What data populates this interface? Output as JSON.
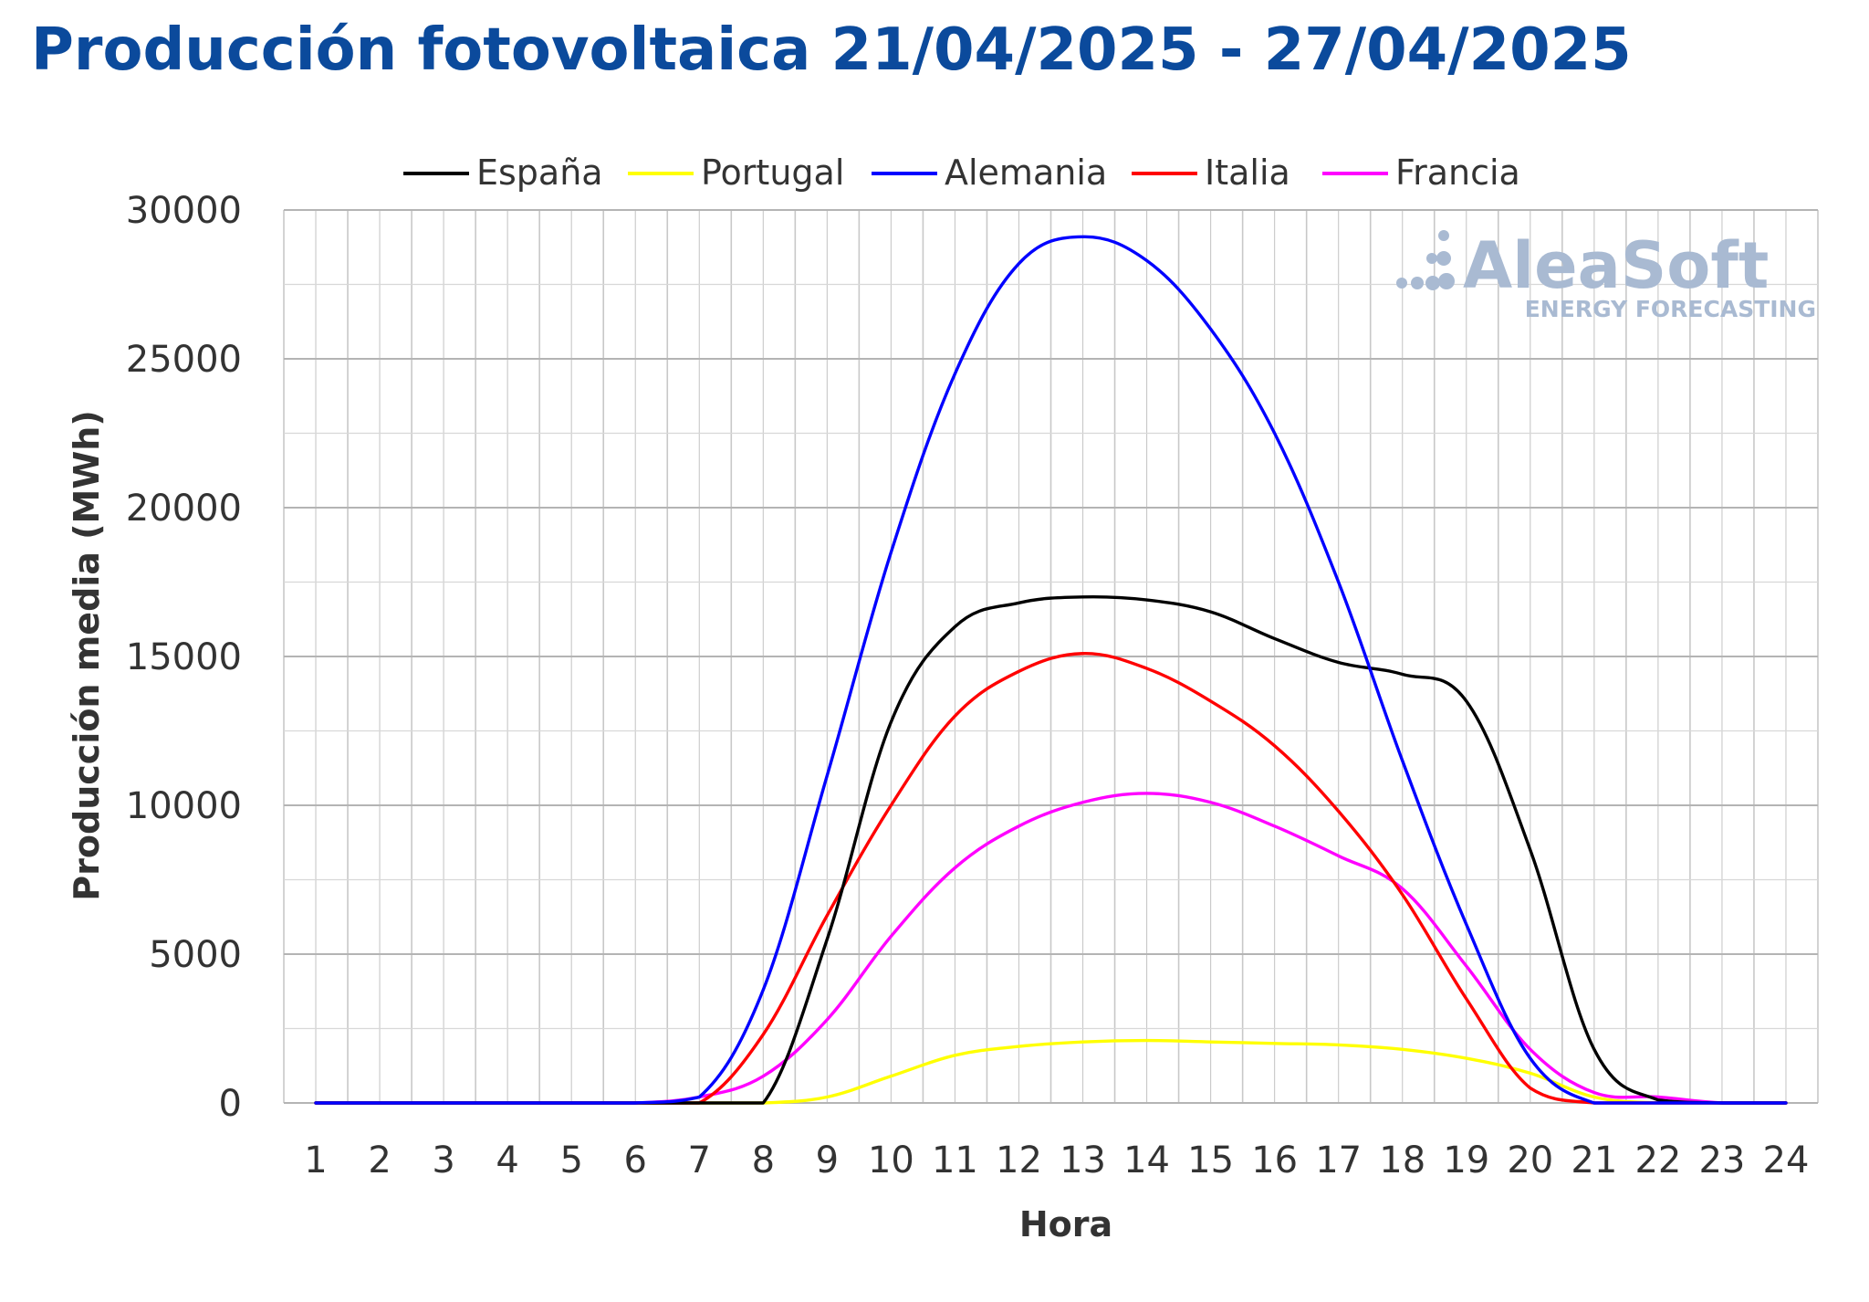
{
  "chart_data": {
    "type": "line",
    "title": "Producción fotovoltaica 21/04/2025 - 27/04/2025",
    "xlabel": "Hora",
    "ylabel": "Producción media (MWh)",
    "categories": [
      "1",
      "2",
      "3",
      "4",
      "5",
      "6",
      "7",
      "8",
      "9",
      "10",
      "11",
      "12",
      "13",
      "14",
      "15",
      "16",
      "17",
      "18",
      "19",
      "20",
      "21",
      "22",
      "23",
      "24"
    ],
    "x": [
      1,
      2,
      3,
      4,
      5,
      6,
      7,
      8,
      9,
      10,
      11,
      12,
      13,
      14,
      15,
      16,
      17,
      18,
      19,
      20,
      21,
      22,
      23,
      24
    ],
    "ylim": [
      0,
      30000
    ],
    "yticks": [
      "0",
      "5000",
      "10000",
      "15000",
      "20000",
      "25000",
      "30000"
    ],
    "grid": true,
    "legend_position": "top",
    "series": [
      {
        "name": "España",
        "color": "#000000",
        "values": [
          0,
          0,
          0,
          0,
          0,
          0,
          0,
          0,
          5500,
          12800,
          16000,
          16800,
          17000,
          16900,
          16500,
          15600,
          14800,
          14400,
          13500,
          8500,
          1800,
          100,
          0,
          0
        ]
      },
      {
        "name": "Portugal",
        "color": "#ffff00",
        "values": [
          0,
          0,
          0,
          0,
          0,
          0,
          0,
          0,
          200,
          900,
          1600,
          1900,
          2050,
          2100,
          2050,
          2000,
          1950,
          1800,
          1500,
          1000,
          200,
          0,
          0,
          0
        ]
      },
      {
        "name": "Alemania",
        "color": "#0000ff",
        "values": [
          0,
          0,
          0,
          0,
          0,
          0,
          200,
          3800,
          11000,
          18500,
          24500,
          28200,
          29100,
          28300,
          26000,
          22500,
          17500,
          11500,
          6000,
          1500,
          0,
          0,
          0,
          0
        ]
      },
      {
        "name": "Italia",
        "color": "#ff0000",
        "values": [
          0,
          0,
          0,
          0,
          0,
          0,
          0,
          2300,
          6300,
          10000,
          13000,
          14500,
          15100,
          14600,
          13500,
          12000,
          9800,
          7000,
          3500,
          500,
          0,
          0,
          0,
          0
        ]
      },
      {
        "name": "Francia",
        "color": "#ff00ff",
        "values": [
          0,
          0,
          0,
          0,
          0,
          0,
          200,
          900,
          2800,
          5600,
          7900,
          9300,
          10100,
          10400,
          10100,
          9300,
          8300,
          7200,
          4600,
          1800,
          350,
          200,
          0,
          0
        ]
      }
    ]
  },
  "watermark": {
    "logo_text": "AleaSoft",
    "logo_subtext": "ENERGY FORECASTING",
    "color": "#a9bad2"
  },
  "colors": {
    "title": "#0b4a9c",
    "grid": "#c8c8c8",
    "text": "#333333"
  }
}
